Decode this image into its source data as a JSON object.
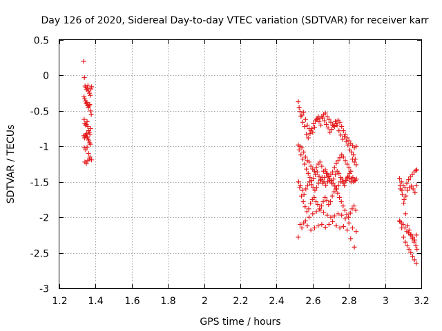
{
  "chart_data": {
    "type": "scatter",
    "title": "Day 126 of 2020, Sidereal Day-to-day VTEC variation (SDTVAR) for receiver karr",
    "xlabel": "GPS time / hours",
    "ylabel": "SDTVAR / TECUs",
    "xlim": [
      1.2,
      3.2
    ],
    "ylim": [
      -3,
      0.5
    ],
    "xticks": [
      "1.2",
      "1.4",
      "1.6",
      "1.8",
      "2",
      "2.2",
      "2.4",
      "2.6",
      "2.8",
      "3",
      "3.2"
    ],
    "yticks": [
      "0.5",
      "0",
      "-0.5",
      "-1",
      "-1.5",
      "-2",
      "-2.5",
      "-3"
    ],
    "grid": true,
    "marker": "+",
    "color": "#e41a1c",
    "series": [
      {
        "name": "SDTVAR",
        "x": [
          1.334,
          1.338,
          1.342,
          1.346,
          1.35,
          1.354,
          1.358,
          1.362,
          1.366,
          1.37,
          1.374,
          1.378,
          1.336,
          1.34,
          1.344,
          1.348,
          1.352,
          1.356,
          1.36,
          1.364,
          1.368,
          1.372,
          1.376,
          1.337,
          1.341,
          1.345,
          1.349,
          1.353,
          1.357,
          1.361,
          1.365,
          1.369,
          1.373,
          1.335,
          1.339,
          1.343,
          1.347,
          1.351,
          1.355,
          1.359,
          1.363,
          1.367,
          1.371,
          1.337,
          1.345,
          1.353,
          1.361,
          1.369,
          1.377,
          1.341,
          1.349,
          1.357,
          1.365,
          2.52,
          2.53,
          2.54,
          2.55,
          2.56,
          2.57,
          2.58,
          2.59,
          2.6,
          2.61,
          2.62,
          2.63,
          2.64,
          2.65,
          2.66,
          2.67,
          2.68,
          2.69,
          2.7,
          2.71,
          2.72,
          2.73,
          2.74,
          2.75,
          2.76,
          2.77,
          2.78,
          2.79,
          2.8,
          2.81,
          2.82,
          2.83,
          2.84,
          2.525,
          2.535,
          2.545,
          2.555,
          2.565,
          2.575,
          2.585,
          2.595,
          2.605,
          2.615,
          2.625,
          2.635,
          2.645,
          2.655,
          2.665,
          2.675,
          2.685,
          2.695,
          2.705,
          2.715,
          2.725,
          2.735,
          2.745,
          2.755,
          2.765,
          2.775,
          2.785,
          2.795,
          2.805,
          2.815,
          2.825,
          2.835,
          2.52,
          2.53,
          2.54,
          2.55,
          2.56,
          2.57,
          2.58,
          2.59,
          2.6,
          2.61,
          2.62,
          2.63,
          2.64,
          2.65,
          2.66,
          2.67,
          2.68,
          2.69,
          2.7,
          2.71,
          2.72,
          2.73,
          2.74,
          2.75,
          2.76,
          2.77,
          2.78,
          2.79,
          2.8,
          2.81,
          2.82,
          2.83,
          2.84,
          2.525,
          2.535,
          2.545,
          2.555,
          2.565,
          2.575,
          2.585,
          2.595,
          2.605,
          2.615,
          2.625,
          2.635,
          2.645,
          2.655,
          2.665,
          2.675,
          2.685,
          2.695,
          2.705,
          2.715,
          2.725,
          2.735,
          2.745,
          2.755,
          2.765,
          2.775,
          2.785,
          2.795,
          2.805,
          2.815,
          2.825,
          2.835,
          2.522,
          2.532,
          2.542,
          2.552,
          2.562,
          2.572,
          2.582,
          2.592,
          2.602,
          2.612,
          2.622,
          2.632,
          2.642,
          2.652,
          2.662,
          2.672,
          2.682,
          2.692,
          2.702,
          2.712,
          2.722,
          2.732,
          2.742,
          2.752,
          2.762,
          2.772,
          2.782,
          2.792,
          2.802,
          2.812,
          2.822,
          2.832,
          2.842,
          2.528,
          2.538,
          2.548,
          2.558,
          2.568,
          2.578,
          2.588,
          2.598,
          2.608,
          2.618,
          2.628,
          2.638,
          2.648,
          2.658,
          2.668,
          2.678,
          2.688,
          2.698,
          2.708,
          2.718,
          2.728,
          2.738,
          2.748,
          2.758,
          2.768,
          2.778,
          2.788,
          2.798,
          2.808,
          2.818,
          2.828,
          2.838,
          2.52,
          2.54,
          2.56,
          2.58,
          2.6,
          2.62,
          2.64,
          2.66,
          2.68,
          2.7,
          2.72,
          2.74,
          2.76,
          2.78,
          2.8,
          2.82,
          2.84,
          2.53,
          2.55,
          2.57,
          2.59,
          2.61,
          2.63,
          2.65,
          2.67,
          2.69,
          2.71,
          2.73,
          2.75,
          2.77,
          2.79,
          2.81,
          2.83,
          3.08,
          3.09,
          3.1,
          3.11,
          3.12,
          3.13,
          3.14,
          3.15,
          3.16,
          3.17,
          3.175,
          3.085,
          3.095,
          3.105,
          3.115,
          3.125,
          3.135,
          3.145,
          3.155,
          3.165,
          3.172,
          3.08,
          3.09,
          3.1,
          3.11,
          3.12,
          3.13,
          3.14,
          3.15,
          3.16,
          3.17,
          3.176,
          3.083,
          3.093,
          3.103,
          3.113,
          3.123,
          3.133,
          3.143,
          3.153,
          3.163,
          3.173,
          3.082,
          3.092,
          3.102,
          3.112,
          3.122,
          3.132,
          3.142,
          3.152,
          3.162,
          3.172
        ],
        "y": [
          0.2,
          -0.03,
          -0.15,
          -0.17,
          -0.2,
          -0.18,
          -0.14,
          -0.22,
          -0.25,
          -0.28,
          -0.19,
          -0.16,
          -0.3,
          -0.33,
          -0.36,
          -0.4,
          -0.38,
          -0.42,
          -0.45,
          -0.43,
          -0.41,
          -0.5,
          -0.55,
          -0.62,
          -0.68,
          -0.7,
          -0.69,
          -0.65,
          -0.72,
          -0.78,
          -0.8,
          -0.83,
          -0.75,
          -0.85,
          -0.88,
          -0.84,
          -0.86,
          -0.82,
          -0.87,
          -0.9,
          -0.92,
          -0.95,
          -0.97,
          -1.02,
          -1.05,
          -1.01,
          -1.1,
          -1.15,
          -1.19,
          -1.22,
          -1.24,
          -1.2,
          -1.18,
          -0.37,
          -0.51,
          -0.56,
          -0.52,
          -0.62,
          -0.7,
          -0.75,
          -0.78,
          -0.8,
          -0.73,
          -0.62,
          -0.58,
          -0.6,
          -0.58,
          -0.55,
          -0.53,
          -0.58,
          -0.62,
          -0.66,
          -0.7,
          -0.72,
          -0.68,
          -0.63,
          -0.66,
          -0.72,
          -0.78,
          -0.83,
          -0.88,
          -0.92,
          -0.96,
          -0.99,
          -1.02,
          -1.0,
          -0.45,
          -0.58,
          -0.66,
          -0.72,
          -0.83,
          -0.88,
          -0.82,
          -0.75,
          -0.68,
          -0.64,
          -0.61,
          -0.65,
          -0.7,
          -0.6,
          -0.64,
          -0.69,
          -0.74,
          -0.8,
          -0.76,
          -0.71,
          -0.65,
          -0.7,
          -0.78,
          -0.84,
          -0.9,
          -0.86,
          -0.93,
          -0.98,
          -1.05,
          -1.08,
          -1.12,
          -1.18,
          -0.98,
          -1.0,
          -1.02,
          -1.08,
          -1.15,
          -1.2,
          -1.22,
          -1.28,
          -1.32,
          -1.35,
          -1.3,
          -1.25,
          -1.22,
          -1.28,
          -1.35,
          -1.33,
          -1.38,
          -1.43,
          -1.4,
          -1.36,
          -1.3,
          -1.24,
          -1.2,
          -1.16,
          -1.12,
          -1.15,
          -1.2,
          -1.25,
          -1.3,
          -1.35,
          -1.18,
          -1.22,
          -1.26,
          -1.05,
          -1.12,
          -1.18,
          -1.25,
          -1.32,
          -1.38,
          -1.44,
          -1.48,
          -1.45,
          -1.4,
          -1.36,
          -1.42,
          -1.47,
          -1.52,
          -1.44,
          -1.38,
          -1.42,
          -1.48,
          -1.52,
          -1.46,
          -1.4,
          -1.35,
          -1.38,
          -1.44,
          -1.5,
          -1.55,
          -1.48,
          -1.42,
          -1.38,
          -1.45,
          -1.5,
          -1.48,
          -1.5,
          -1.55,
          -1.62,
          -1.68,
          -1.6,
          -1.55,
          -1.5,
          -1.54,
          -1.58,
          -1.62,
          -1.58,
          -1.52,
          -1.48,
          -1.44,
          -1.5,
          -1.55,
          -1.5,
          -1.46,
          -1.48,
          -1.52,
          -1.56,
          -1.6,
          -1.55,
          -1.5,
          -1.46,
          -1.52,
          -1.48,
          -1.44,
          -1.46,
          -1.5,
          -1.44,
          -1.48,
          -1.46,
          -1.58,
          -1.7,
          -1.78,
          -1.85,
          -1.92,
          -1.88,
          -1.8,
          -1.75,
          -1.72,
          -1.78,
          -1.82,
          -1.88,
          -1.84,
          -1.78,
          -1.72,
          -1.76,
          -1.82,
          -1.78,
          -1.7,
          -1.64,
          -1.6,
          -1.66,
          -1.72,
          -1.78,
          -1.84,
          -1.9,
          -1.96,
          -2.0,
          -1.94,
          -1.88,
          -1.84,
          -1.9,
          -2.28,
          -2.15,
          -2.05,
          -2.0,
          -1.95,
          -1.92,
          -1.9,
          -1.93,
          -1.97,
          -2.0,
          -1.98,
          -1.95,
          -1.97,
          -2.02,
          -2.08,
          -2.15,
          -2.2,
          -2.1,
          -2.08,
          -2.12,
          -2.18,
          -2.15,
          -2.12,
          -2.1,
          -2.14,
          -2.1,
          -2.06,
          -2.12,
          -2.15,
          -2.13,
          -2.18,
          -2.3,
          -2.42,
          -1.45,
          -1.5,
          -1.55,
          -1.58,
          -1.52,
          -1.47,
          -1.43,
          -1.4,
          -1.36,
          -1.34,
          -1.33,
          -1.6,
          -1.68,
          -1.75,
          -1.7,
          -1.62,
          -1.58,
          -1.56,
          -1.6,
          -1.65,
          -1.55,
          -2.05,
          -2.08,
          -2.1,
          -2.15,
          -2.2,
          -2.22,
          -2.25,
          -2.3,
          -2.35,
          -2.4,
          -2.45,
          -1.55,
          -1.62,
          -1.8,
          -1.95,
          -2.12,
          -2.18,
          -2.24,
          -2.28,
          -2.32,
          -2.25,
          -2.06,
          -2.15,
          -2.28,
          -2.35,
          -2.4,
          -2.45,
          -2.5,
          -2.55,
          -2.6,
          -2.65
        ]
      }
    ]
  }
}
